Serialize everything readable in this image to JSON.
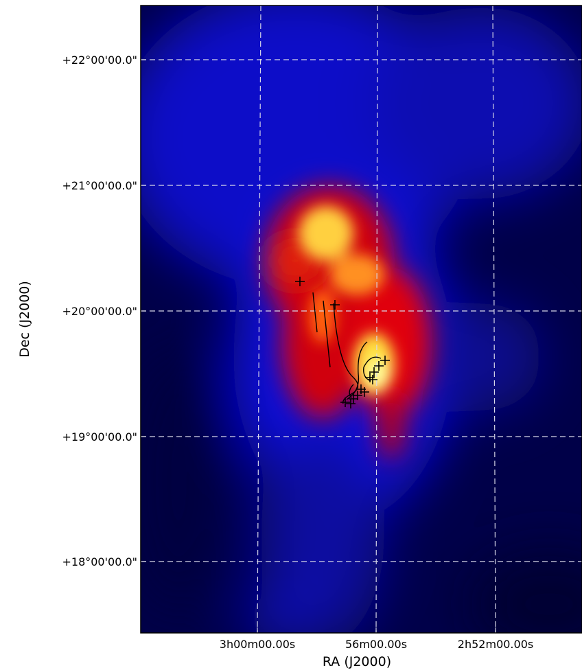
{
  "x_axis": {
    "label": "RA (J2000)",
    "ticks": [
      "3h00m00.00s",
      "56m00.00s",
      "2h52m00.00s"
    ]
  },
  "y_axis": {
    "label": "Dec (J2000)",
    "ticks": [
      "+22°00'00.0\"",
      "+21°00'00.0\"",
      "+20°00'00.0\"",
      "+19°00'00.0\"",
      "+18°00'00.0\""
    ]
  }
}
